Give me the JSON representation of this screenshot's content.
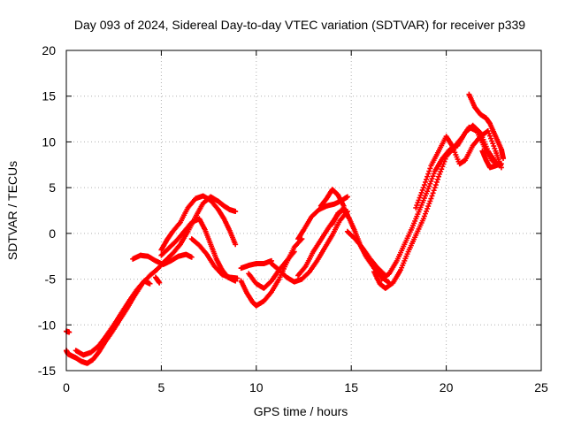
{
  "chart_data": {
    "type": "scatter",
    "title": "Day 093 of 2024, Sidereal Day-to-day VTEC variation (SDTVAR) for receiver p339",
    "xlabel": "GPS time / hours",
    "ylabel": "SDTVAR / TECUs",
    "xlim": [
      0,
      25
    ],
    "ylim": [
      -15,
      20
    ],
    "x_ticks": [
      0,
      5,
      10,
      15,
      20,
      25
    ],
    "y_ticks": [
      -15,
      -10,
      -5,
      0,
      5,
      10,
      15,
      20
    ],
    "grid": true,
    "grid_style": "dotted",
    "marker": "plus",
    "color": "#ff0000",
    "series": [
      {
        "segments": [
          [
            [
              0.0,
              -10.7
            ],
            [
              0.15,
              -10.8
            ]
          ],
          [
            [
              0.0,
              -12.8
            ],
            [
              0.1,
              -13.2
            ],
            [
              0.3,
              -13.4
            ],
            [
              0.5,
              -13.6
            ],
            [
              0.8,
              -14.0
            ],
            [
              1.1,
              -14.2
            ],
            [
              1.4,
              -13.8
            ],
            [
              1.7,
              -13.0
            ],
            [
              2.0,
              -12.0
            ],
            [
              2.4,
              -10.8
            ],
            [
              2.8,
              -9.5
            ],
            [
              3.2,
              -8.2
            ],
            [
              3.6,
              -6.8
            ],
            [
              4.0,
              -5.5
            ],
            [
              4.4,
              -4.6
            ],
            [
              4.8,
              -3.9
            ],
            [
              5.2,
              -3.0
            ],
            [
              5.6,
              -2.2
            ],
            [
              6.0,
              -1.2
            ],
            [
              6.4,
              0.2
            ],
            [
              6.8,
              1.8
            ],
            [
              7.2,
              3.3
            ],
            [
              7.6,
              4.0
            ],
            [
              8.0,
              3.5
            ],
            [
              8.3,
              3.0
            ],
            [
              8.6,
              2.6
            ],
            [
              8.9,
              2.4
            ]
          ],
          [
            [
              0.5,
              -12.8
            ],
            [
              0.9,
              -13.3
            ],
            [
              1.3,
              -13.0
            ],
            [
              1.7,
              -12.3
            ],
            [
              2.1,
              -11.2
            ],
            [
              2.5,
              -10.0
            ],
            [
              2.9,
              -8.7
            ],
            [
              3.3,
              -7.4
            ],
            [
              3.7,
              -6.2
            ],
            [
              4.1,
              -5.2
            ],
            [
              4.4,
              -5.5
            ]
          ],
          [
            [
              3.5,
              -2.8
            ],
            [
              3.9,
              -2.4
            ],
            [
              4.3,
              -2.5
            ],
            [
              4.7,
              -3.0
            ],
            [
              5.1,
              -3.4
            ],
            [
              5.5,
              -3.0
            ],
            [
              5.9,
              -2.5
            ],
            [
              6.3,
              -2.3
            ],
            [
              6.6,
              -2.6
            ]
          ],
          [
            [
              4.7,
              -4.8
            ],
            [
              4.9,
              -5.4
            ]
          ],
          [
            [
              5.0,
              -1.8
            ],
            [
              5.3,
              -0.7
            ],
            [
              5.6,
              0.2
            ],
            [
              6.0,
              1.2
            ],
            [
              6.4,
              2.8
            ],
            [
              6.8,
              3.8
            ],
            [
              7.2,
              4.1
            ],
            [
              7.6,
              3.6
            ],
            [
              8.0,
              2.6
            ],
            [
              8.3,
              1.6
            ],
            [
              8.6,
              0.3
            ],
            [
              8.9,
              -1.2
            ]
          ],
          [
            [
              5.0,
              -2.4
            ],
            [
              5.4,
              -1.6
            ],
            [
              5.8,
              -0.8
            ],
            [
              6.2,
              0.2
            ],
            [
              6.6,
              1.2
            ],
            [
              7.0,
              1.6
            ],
            [
              7.3,
              0.4
            ],
            [
              7.6,
              -1.2
            ],
            [
              7.9,
              -2.8
            ],
            [
              8.2,
              -4.0
            ],
            [
              8.5,
              -4.8
            ],
            [
              8.9,
              -5.2
            ]
          ],
          [
            [
              6.6,
              -0.6
            ],
            [
              7.0,
              -1.3
            ],
            [
              7.4,
              -2.3
            ],
            [
              7.8,
              -3.6
            ],
            [
              8.2,
              -4.5
            ],
            [
              8.6,
              -4.8
            ],
            [
              9.0,
              -4.9
            ]
          ],
          [
            [
              9.2,
              -3.8
            ],
            [
              9.6,
              -3.5
            ],
            [
              10.0,
              -3.3
            ],
            [
              10.4,
              -3.3
            ],
            [
              10.8,
              -3.0
            ]
          ],
          [
            [
              9.2,
              -5.2
            ],
            [
              9.5,
              -6.5
            ],
            [
              9.8,
              -7.5
            ],
            [
              10.0,
              -7.9
            ],
            [
              10.4,
              -7.4
            ],
            [
              10.8,
              -6.4
            ],
            [
              11.2,
              -5.0
            ],
            [
              11.6,
              -3.2
            ],
            [
              12.0,
              -1.5
            ],
            [
              12.4,
              -0.6
            ]
          ],
          [
            [
              9.6,
              -4.4
            ],
            [
              10.0,
              -5.5
            ],
            [
              10.4,
              -6.0
            ],
            [
              10.8,
              -5.2
            ],
            [
              11.2,
              -4.0
            ],
            [
              11.6,
              -3.0
            ],
            [
              12.0,
              -2.0
            ]
          ],
          [
            [
              10.8,
              -3.3
            ],
            [
              11.2,
              -4.0
            ],
            [
              11.6,
              -4.8
            ],
            [
              12.0,
              -5.3
            ],
            [
              12.4,
              -5.0
            ],
            [
              12.8,
              -4.2
            ],
            [
              13.2,
              -3.0
            ],
            [
              13.6,
              -1.6
            ],
            [
              14.0,
              -0.2
            ],
            [
              14.4,
              1.4
            ],
            [
              14.8,
              2.4
            ]
          ],
          [
            [
              12.2,
              -4.6
            ],
            [
              12.6,
              -3.6
            ],
            [
              13.0,
              -2.0
            ],
            [
              13.4,
              -0.7
            ],
            [
              13.8,
              0.6
            ],
            [
              14.2,
              1.8
            ],
            [
              14.6,
              2.8
            ],
            [
              14.8,
              2.0
            ]
          ],
          [
            [
              12.2,
              -0.6
            ],
            [
              12.5,
              0.4
            ],
            [
              12.9,
              1.8
            ],
            [
              13.3,
              2.6
            ],
            [
              13.7,
              3.0
            ],
            [
              14.1,
              3.2
            ],
            [
              14.5,
              3.6
            ],
            [
              14.8,
              4.0
            ]
          ],
          [
            [
              13.4,
              3.0
            ],
            [
              13.7,
              3.8
            ],
            [
              14.0,
              4.8
            ],
            [
              14.3,
              4.2
            ],
            [
              14.6,
              3.0
            ]
          ],
          [
            [
              14.0,
              1.0
            ],
            [
              14.3,
              2.2
            ],
            [
              14.6,
              2.6
            ],
            [
              14.9,
              1.6
            ],
            [
              15.2,
              0.2
            ],
            [
              15.5,
              -1.4
            ],
            [
              15.8,
              -2.6
            ],
            [
              16.2,
              -3.8
            ],
            [
              16.6,
              -4.8
            ],
            [
              17.0,
              -5.4
            ]
          ],
          [
            [
              14.8,
              0.2
            ],
            [
              15.2,
              -0.6
            ],
            [
              15.6,
              -1.6
            ],
            [
              16.0,
              -2.8
            ],
            [
              16.4,
              -3.8
            ],
            [
              16.8,
              -4.6
            ]
          ],
          [
            [
              16.2,
              -4.2
            ],
            [
              16.5,
              -5.5
            ],
            [
              16.8,
              -6.0
            ],
            [
              17.2,
              -5.4
            ],
            [
              17.6,
              -4.0
            ],
            [
              18.0,
              -2.0
            ],
            [
              18.4,
              -0.2
            ],
            [
              18.8,
              1.6
            ],
            [
              19.2,
              3.8
            ],
            [
              19.6,
              6.2
            ],
            [
              20.0,
              8.4
            ],
            [
              20.4,
              9.4
            ],
            [
              20.8,
              10.4
            ],
            [
              21.2,
              11.6
            ],
            [
              21.6,
              11.2
            ],
            [
              22.0,
              9.5
            ],
            [
              22.4,
              8.0
            ],
            [
              22.8,
              7.4
            ]
          ],
          [
            [
              16.6,
              -5.0
            ],
            [
              17.0,
              -4.4
            ],
            [
              17.4,
              -3.0
            ],
            [
              17.8,
              -1.2
            ],
            [
              18.2,
              0.6
            ],
            [
              18.6,
              2.6
            ],
            [
              19.0,
              4.6
            ],
            [
              19.4,
              6.8
            ],
            [
              19.8,
              8.2
            ],
            [
              20.2,
              9.2
            ],
            [
              20.6,
              9.6
            ],
            [
              21.0,
              11.0
            ],
            [
              21.4,
              11.8
            ],
            [
              21.8,
              11.0
            ],
            [
              22.2,
              9.0
            ],
            [
              22.6,
              7.8
            ]
          ],
          [
            [
              18.4,
              2.8
            ],
            [
              18.8,
              5.0
            ],
            [
              19.2,
              7.4
            ],
            [
              19.6,
              9.0
            ],
            [
              20.0,
              10.6
            ],
            [
              20.3,
              9.6
            ],
            [
              20.7,
              7.6
            ],
            [
              21.0,
              8.0
            ],
            [
              21.4,
              9.6
            ],
            [
              21.8,
              10.6
            ],
            [
              22.2,
              11.2
            ],
            [
              22.6,
              9.0
            ],
            [
              22.9,
              7.2
            ]
          ],
          [
            [
              21.2,
              15.2
            ],
            [
              21.5,
              13.8
            ],
            [
              21.8,
              13.0
            ],
            [
              22.1,
              12.6
            ],
            [
              22.3,
              12.0
            ],
            [
              22.6,
              10.6
            ],
            [
              22.9,
              9.2
            ],
            [
              23.0,
              8.2
            ]
          ],
          [
            [
              21.9,
              9.0
            ],
            [
              22.1,
              8.0
            ],
            [
              22.3,
              7.2
            ],
            [
              22.6,
              7.4
            ],
            [
              22.9,
              7.6
            ]
          ]
        ]
      }
    ]
  }
}
